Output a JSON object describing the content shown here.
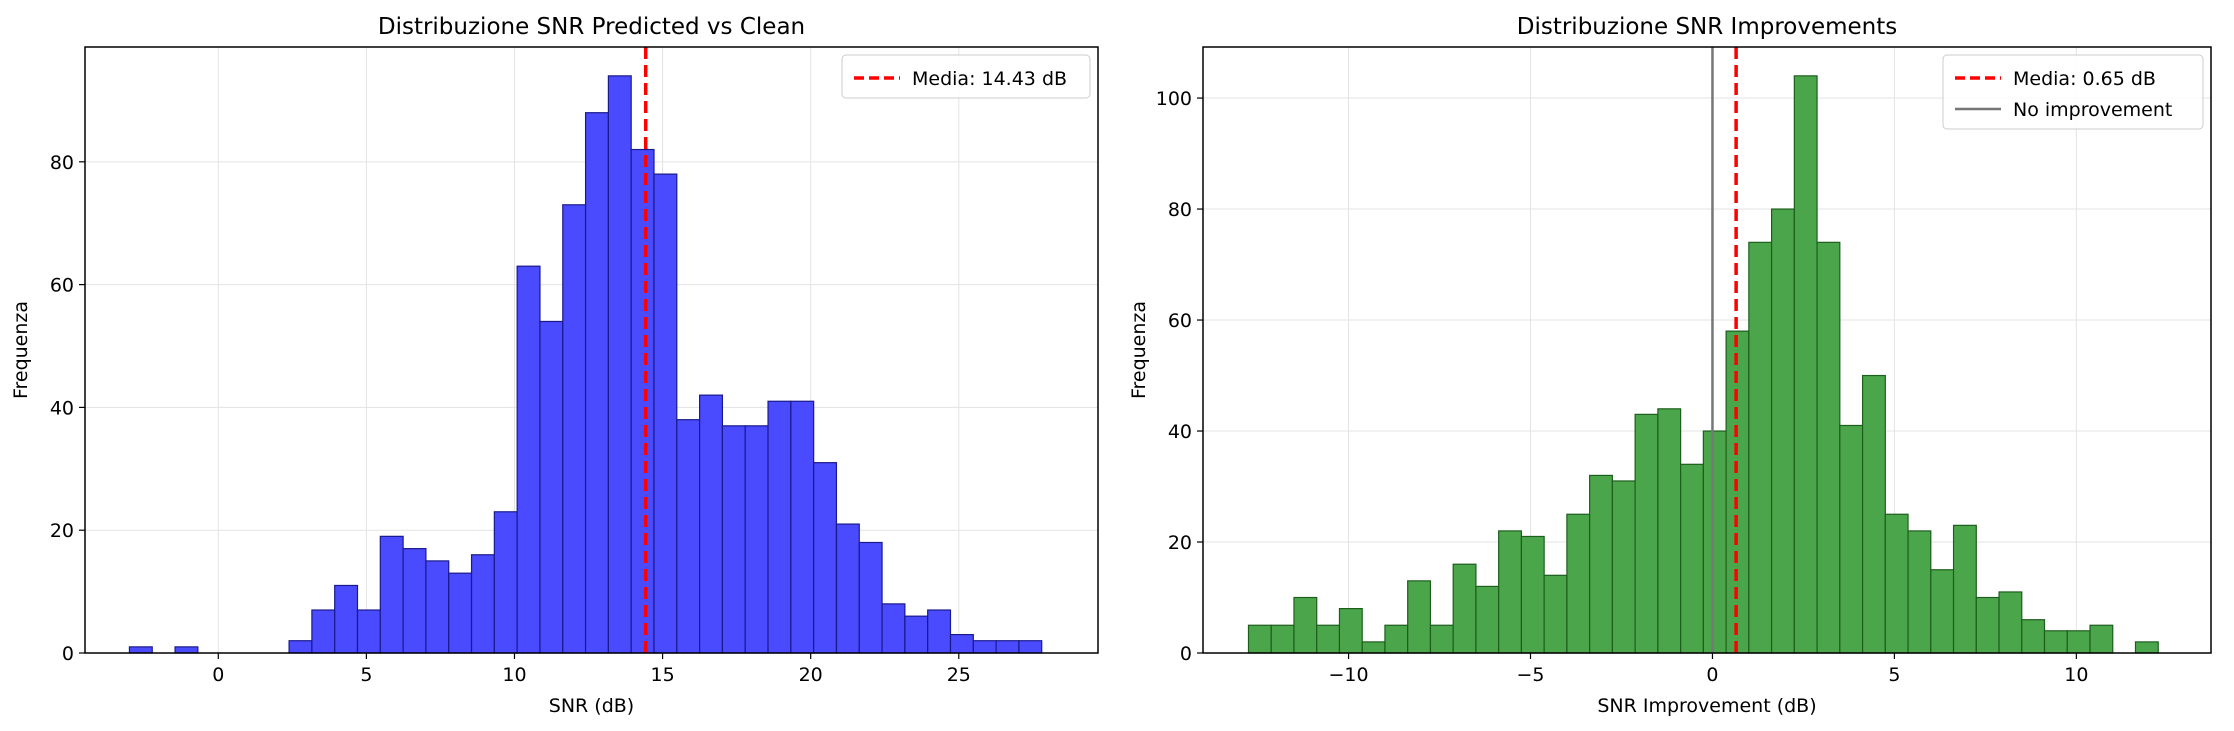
{
  "colors": {
    "bar_blue": "#4a4aff",
    "bar_blue_edge": "#1a1a8c",
    "bar_green": "#4ba64b",
    "bar_green_edge": "#1d5e1d",
    "mean_line": "#ff0000",
    "no_improvement_line": "#777777",
    "grid": "#e3e3e3"
  },
  "chart_data": [
    {
      "type": "bar",
      "title": "Distribuzione SNR Predicted vs Clean",
      "xlabel": "SNR (dB)",
      "ylabel": "Frequenza",
      "xlim": [
        -4.5,
        29.7
      ],
      "ylim": [
        0,
        98.7
      ],
      "xticks": [
        0,
        5,
        10,
        15,
        20,
        25
      ],
      "yticks": [
        0,
        20,
        40,
        60,
        80
      ],
      "grid": true,
      "bin_width": 0.77,
      "bins": [
        {
          "x": -3.0,
          "count": 1
        },
        {
          "x": -2.23,
          "count": 0
        },
        {
          "x": -1.46,
          "count": 1
        },
        {
          "x": -0.69,
          "count": 0
        },
        {
          "x": 0.08,
          "count": 0
        },
        {
          "x": 0.85,
          "count": 0
        },
        {
          "x": 1.62,
          "count": 0
        },
        {
          "x": 2.39,
          "count": 2
        },
        {
          "x": 3.16,
          "count": 7
        },
        {
          "x": 3.93,
          "count": 11
        },
        {
          "x": 4.7,
          "count": 7
        },
        {
          "x": 5.47,
          "count": 19
        },
        {
          "x": 6.24,
          "count": 17
        },
        {
          "x": 7.01,
          "count": 15
        },
        {
          "x": 7.78,
          "count": 13
        },
        {
          "x": 8.55,
          "count": 16
        },
        {
          "x": 9.32,
          "count": 23
        },
        {
          "x": 10.09,
          "count": 63
        },
        {
          "x": 10.86,
          "count": 54
        },
        {
          "x": 11.63,
          "count": 73
        },
        {
          "x": 12.4,
          "count": 88
        },
        {
          "x": 13.17,
          "count": 94
        },
        {
          "x": 13.94,
          "count": 82
        },
        {
          "x": 14.71,
          "count": 78
        },
        {
          "x": 15.48,
          "count": 38
        },
        {
          "x": 16.25,
          "count": 42
        },
        {
          "x": 17.02,
          "count": 37
        },
        {
          "x": 17.79,
          "count": 37
        },
        {
          "x": 18.56,
          "count": 41
        },
        {
          "x": 19.33,
          "count": 41
        },
        {
          "x": 20.1,
          "count": 31
        },
        {
          "x": 20.87,
          "count": 21
        },
        {
          "x": 21.64,
          "count": 18
        },
        {
          "x": 22.41,
          "count": 8
        },
        {
          "x": 23.18,
          "count": 6
        },
        {
          "x": 23.95,
          "count": 7
        },
        {
          "x": 24.72,
          "count": 3
        },
        {
          "x": 25.49,
          "count": 2
        },
        {
          "x": 26.26,
          "count": 2
        },
        {
          "x": 27.03,
          "count": 2
        }
      ],
      "mean_line": {
        "x": 14.43,
        "label": "Media: 14.43 dB"
      },
      "legend": {
        "placement": "top-right",
        "entries": [
          "Media: 14.43 dB"
        ]
      }
    },
    {
      "type": "bar",
      "title": "Distribuzione SNR Improvements",
      "xlabel": "SNR Improvement (dB)",
      "ylabel": "Frequenza",
      "xlim": [
        -14.0,
        13.7
      ],
      "ylim": [
        0,
        109.2
      ],
      "xticks": [
        -10,
        -5,
        0,
        5,
        10
      ],
      "xtick_labels": [
        "−10",
        "−5",
        "0",
        "5",
        "10"
      ],
      "yticks": [
        0,
        20,
        40,
        60,
        80,
        100
      ],
      "grid": true,
      "bin_width": 0.625,
      "bins": [
        {
          "x": -12.75,
          "count": 5
        },
        {
          "x": -12.125,
          "count": 5
        },
        {
          "x": -11.5,
          "count": 10
        },
        {
          "x": -10.875,
          "count": 5
        },
        {
          "x": -10.25,
          "count": 8
        },
        {
          "x": -9.625,
          "count": 2
        },
        {
          "x": -9.0,
          "count": 5
        },
        {
          "x": -8.375,
          "count": 13
        },
        {
          "x": -7.75,
          "count": 5
        },
        {
          "x": -7.125,
          "count": 16
        },
        {
          "x": -6.5,
          "count": 12
        },
        {
          "x": -5.875,
          "count": 22
        },
        {
          "x": -5.25,
          "count": 21
        },
        {
          "x": -4.625,
          "count": 14
        },
        {
          "x": -4.0,
          "count": 25
        },
        {
          "x": -3.375,
          "count": 32
        },
        {
          "x": -2.75,
          "count": 31
        },
        {
          "x": -2.125,
          "count": 43
        },
        {
          "x": -1.5,
          "count": 44
        },
        {
          "x": -0.875,
          "count": 34
        },
        {
          "x": -0.25,
          "count": 40
        },
        {
          "x": 0.375,
          "count": 58
        },
        {
          "x": 1.0,
          "count": 74
        },
        {
          "x": 1.625,
          "count": 80
        },
        {
          "x": 2.25,
          "count": 104
        },
        {
          "x": 2.875,
          "count": 74
        },
        {
          "x": 3.5,
          "count": 41
        },
        {
          "x": 4.125,
          "count": 50
        },
        {
          "x": 4.75,
          "count": 25
        },
        {
          "x": 5.375,
          "count": 22
        },
        {
          "x": 6.0,
          "count": 15
        },
        {
          "x": 6.625,
          "count": 23
        },
        {
          "x": 7.25,
          "count": 10
        },
        {
          "x": 7.875,
          "count": 11
        },
        {
          "x": 8.5,
          "count": 6
        },
        {
          "x": 9.125,
          "count": 4
        },
        {
          "x": 9.75,
          "count": 4
        },
        {
          "x": 10.375,
          "count": 5
        },
        {
          "x": 11.0,
          "count": 0
        },
        {
          "x": 11.625,
          "count": 2
        }
      ],
      "mean_line": {
        "x": 0.65,
        "label": "Media: 0.65 dB"
      },
      "reference_line": {
        "x": 0,
        "label": "No improvement"
      },
      "legend": {
        "placement": "top-right",
        "entries": [
          "Media: 0.65 dB",
          "No improvement"
        ]
      }
    }
  ]
}
